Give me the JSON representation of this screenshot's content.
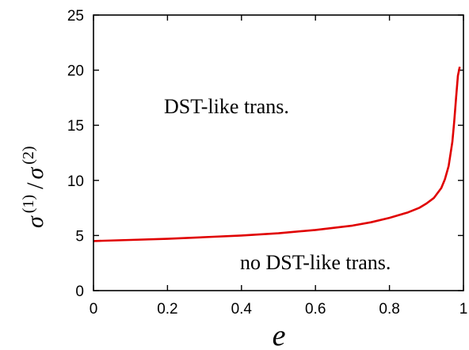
{
  "chart_data": {
    "type": "line",
    "xlabel": "e",
    "ylabel": {
      "main": "σ",
      "sup1": "(1)",
      "slash": "/",
      "main2": "σ",
      "sup2": "(2)"
    },
    "xlim": [
      0,
      1
    ],
    "ylim": [
      0,
      25
    ],
    "xticks": [
      0,
      0.2,
      0.4,
      0.6,
      0.8,
      1
    ],
    "xtick_labels": [
      "0",
      "0.2",
      "0.4",
      "0.6",
      "0.8",
      "1"
    ],
    "yticks": [
      0,
      5,
      10,
      15,
      20,
      25
    ],
    "ytick_labels": [
      "0",
      "5",
      "10",
      "15",
      "20",
      "25"
    ],
    "grid": false,
    "series": [
      {
        "color": "#e00000",
        "x": [
          0,
          0.1,
          0.2,
          0.3,
          0.4,
          0.5,
          0.6,
          0.7,
          0.75,
          0.8,
          0.85,
          0.88,
          0.9,
          0.92,
          0.94,
          0.95,
          0.96,
          0.97,
          0.975,
          0.98,
          0.985,
          0.99
        ],
        "y": [
          4.5,
          4.6,
          4.7,
          4.85,
          5.0,
          5.2,
          5.5,
          5.9,
          6.2,
          6.6,
          7.1,
          7.5,
          7.9,
          8.4,
          9.3,
          10.1,
          11.3,
          13.5,
          15.3,
          17.5,
          19.5,
          20.3
        ]
      }
    ],
    "annotations": [
      {
        "text": "DST-like trans."
      },
      {
        "text": "no DST-like trans."
      }
    ]
  }
}
